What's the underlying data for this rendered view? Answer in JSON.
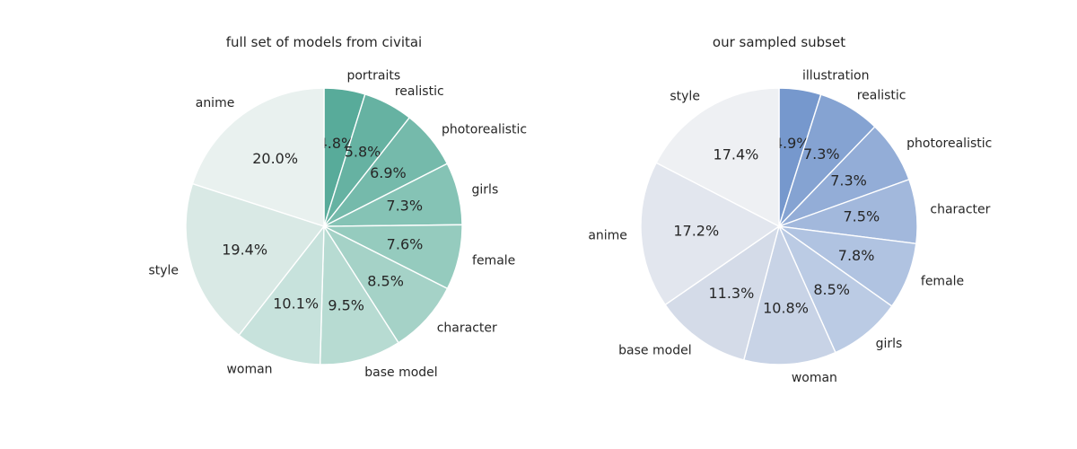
{
  "chart_data": [
    {
      "type": "pie",
      "title": "full set of models from civitai",
      "categories": [
        "portraits",
        "realistic",
        "photorealistic",
        "girls",
        "female",
        "character",
        "base model",
        "woman",
        "style",
        "anime"
      ],
      "values": [
        4.8,
        5.8,
        6.9,
        7.3,
        7.6,
        8.5,
        9.5,
        10.1,
        19.4,
        20.0
      ],
      "value_labels": [
        "4.8%",
        "5.8%",
        "6.9%",
        "7.3%",
        "7.6%",
        "8.5%",
        "9.5%",
        "10.1%",
        "19.4%",
        "20.0%"
      ],
      "colors": [
        "#58ab9a",
        "#66b2a2",
        "#75baab",
        "#85c3b5",
        "#95cbbe",
        "#a5d2c7",
        "#b7dbd2",
        "#c7e2dc",
        "#d9e9e5",
        "#e9f1ef"
      ],
      "start": "top, clockwise"
    },
    {
      "type": "pie",
      "title": "our sampled subset",
      "categories": [
        "illustration",
        "realistic",
        "photorealistic",
        "character",
        "female",
        "girls",
        "woman",
        "base model",
        "anime",
        "style"
      ],
      "values": [
        4.9,
        7.3,
        7.3,
        7.5,
        7.8,
        8.5,
        10.8,
        11.3,
        17.2,
        17.4
      ],
      "value_labels": [
        "4.9%",
        "7.3%",
        "7.3%",
        "7.5%",
        "7.8%",
        "8.5%",
        "10.8%",
        "11.3%",
        "17.2%",
        "17.4%"
      ],
      "colors": [
        "#7698cd",
        "#85a3d2",
        "#93add7",
        "#a2b8dc",
        "#b0c3e1",
        "#bbcbe4",
        "#c8d3e6",
        "#d4dbe8",
        "#e2e6ee",
        "#eef0f3"
      ],
      "start": "top, clockwise"
    }
  ]
}
